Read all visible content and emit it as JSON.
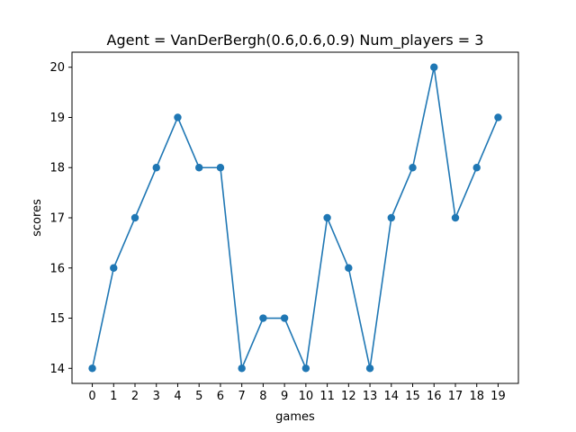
{
  "chart_data": {
    "type": "line",
    "title": "Agent = VanDerBergh(0.6,0.6,0.9) Num_players = 3",
    "xlabel": "games",
    "ylabel": "scores",
    "x": [
      0,
      1,
      2,
      3,
      4,
      5,
      6,
      7,
      8,
      9,
      10,
      11,
      12,
      13,
      14,
      15,
      16,
      17,
      18,
      19
    ],
    "series": [
      {
        "values": [
          14,
          16,
          17,
          18,
          19,
          18,
          18,
          14,
          15,
          15,
          14,
          17,
          16,
          14,
          17,
          18,
          20,
          17,
          18,
          19
        ]
      }
    ],
    "xlim": [
      -0.95,
      19.95
    ],
    "ylim": [
      13.7,
      20.3
    ],
    "xticks": [
      0,
      1,
      2,
      3,
      4,
      5,
      6,
      7,
      8,
      9,
      10,
      11,
      12,
      13,
      14,
      15,
      16,
      17,
      18,
      19
    ],
    "yticks": [
      14,
      15,
      16,
      17,
      18,
      19,
      20
    ],
    "grid": false,
    "legend": "none",
    "line_color": "#1f77b4",
    "marker": "circle"
  }
}
